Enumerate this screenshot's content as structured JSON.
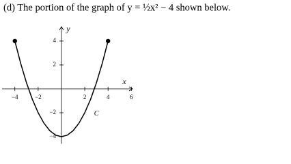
{
  "heading": "(d) The portion of the graph of y = ½x² − 4 shown below.",
  "chart_data": {
    "type": "line",
    "x_label": "x",
    "y_label": "y",
    "annotation": "C",
    "x": [
      -4,
      -3.5,
      -3,
      -2.5,
      -2,
      -1.5,
      -1,
      -0.5,
      0,
      0.5,
      1,
      1.5,
      2,
      2.5,
      3,
      3.5,
      4
    ],
    "series": [
      {
        "color": "#000000",
        "values": [
          4,
          2.125,
          0.5,
          -0.875,
          -2,
          -2.875,
          -3.5,
          -3.875,
          -4,
          -3.875,
          -3.5,
          -2.875,
          -2,
          -0.875,
          0.5,
          2.125,
          4
        ]
      }
    ],
    "endpoints": true,
    "xlim": [
      -5.1,
      6.1
    ],
    "ylim": [
      -4.6,
      5.2
    ],
    "xticks": [
      {
        "value": -4,
        "label": "−4"
      },
      {
        "value": -2,
        "label": "−2"
      },
      2,
      4,
      6
    ],
    "yticks": [
      {
        "value": -4,
        "label": "−4"
      },
      {
        "value": -2,
        "label": "−2"
      },
      2,
      4
    ]
  }
}
